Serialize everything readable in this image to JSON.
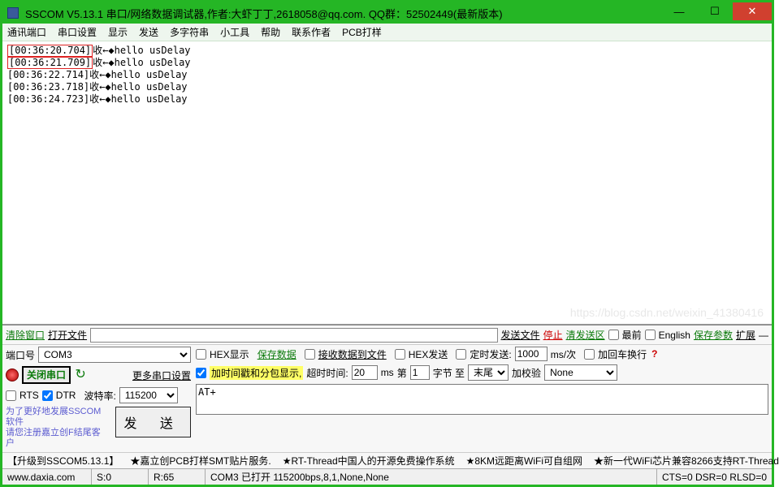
{
  "colors": {
    "titlebar": "#25b625",
    "close_btn": "#d0402f",
    "link_green": "#0a7a0a",
    "link_red": "#c00",
    "highlight": "#ffff66",
    "help_text": "#5b5bd0"
  },
  "title": "SSCOM V5.13.1 串口/网络数据调试器,作者:大虾丁丁,2618058@qq.com. QQ群：52502449(最新版本)",
  "menu": [
    "通讯端口",
    "串口设置",
    "显示",
    "发送",
    "多字符串",
    "小工具",
    "帮助",
    "联系作者",
    "PCB打样"
  ],
  "log": [
    {
      "ts": "[00:36:20.704]",
      "hl": true,
      "body": "收←◆hello usDelay"
    },
    {
      "ts": "[00:36:21.709]",
      "hl": true,
      "body": "收←◆hello usDelay"
    },
    {
      "ts": "[00:36:22.714]",
      "hl": false,
      "body": "收←◆hello usDelay"
    },
    {
      "ts": "[00:36:23.718]",
      "hl": false,
      "body": "收←◆hello usDelay"
    },
    {
      "ts": "[00:36:24.723]",
      "hl": false,
      "body": "收←◆hello usDelay"
    }
  ],
  "toolbar1": {
    "clear": "清除窗口",
    "openfile": "打开文件",
    "sendfile": "发送文件",
    "stop": "停止",
    "clearsend": "清发送区",
    "top": "最前",
    "english": "English",
    "saveparam": "保存参数",
    "expand": "扩展"
  },
  "port": {
    "label": "端口号",
    "value": "COM3"
  },
  "baud": {
    "label": "波特率:",
    "value": "115200"
  },
  "close_port": "关闭串口",
  "more_setting": "更多串口设置",
  "rts": {
    "label": "RTS",
    "checked": false
  },
  "dtr": {
    "label": "DTR",
    "checked": true
  },
  "hex_show": {
    "label": "HEX显示",
    "checked": false
  },
  "save_data": "保存数据",
  "rx_to_file": {
    "label": "接收数据到文件",
    "checked": false
  },
  "hex_send": {
    "label": "HEX发送",
    "checked": false
  },
  "timed_send": {
    "label": "定时发送:",
    "checked": false,
    "value": "1000",
    "unit": "ms/次"
  },
  "add_crlf": {
    "label": "加回车换行",
    "checked": false
  },
  "ts_pkt": {
    "label": "加时间戳和分包显示,",
    "checked": true
  },
  "timeout": {
    "label": "超时时间:",
    "value": "20",
    "unit": "ms"
  },
  "byte_no": {
    "label1": "第",
    "value": "1",
    "label2": "字节 至"
  },
  "tail": {
    "value": "末尾"
  },
  "checksum": {
    "label": "加校验",
    "value": "None"
  },
  "send_text": "AT+",
  "send_btn": "发 送",
  "help_lines": [
    "为了更好地发展SSCOM软件",
    "请您注册嘉立创F结尾客户"
  ],
  "ads": [
    "【升级到SSCOM5.13.1】",
    "★嘉立创PCB打样SMT贴片服务.",
    "★RT-Thread中国人的开源免费操作系统",
    "★8KM远距离WiFi可自组网",
    "★新一代WiFi芯片兼容8266支持RT-Thread"
  ],
  "status": {
    "site": "www.daxia.com",
    "s": "S:0",
    "r": "R:65",
    "conn": "COM3 已打开 115200bps,8,1,None,None",
    "sig": "CTS=0 DSR=0 RLSD=0"
  },
  "watermark": "https://blog.csdn.net/weixin_41380416",
  "qmark": "?"
}
